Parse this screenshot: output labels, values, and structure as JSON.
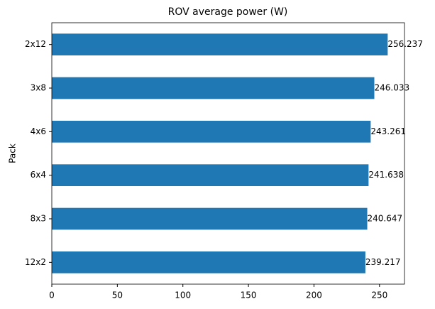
{
  "chart_data": {
    "type": "barh",
    "title": "ROV average power (W)",
    "ylabel": "Pack",
    "categories": [
      "2x12",
      "3x8",
      "4x6",
      "6x4",
      "8x3",
      "12x2"
    ],
    "values": [
      256.237,
      246.033,
      243.261,
      241.638,
      240.647,
      239.217
    ],
    "color": "#1f77b4",
    "xlim": [
      0,
      269.05
    ],
    "xticks": [
      0,
      50,
      100,
      150,
      200,
      250
    ]
  }
}
